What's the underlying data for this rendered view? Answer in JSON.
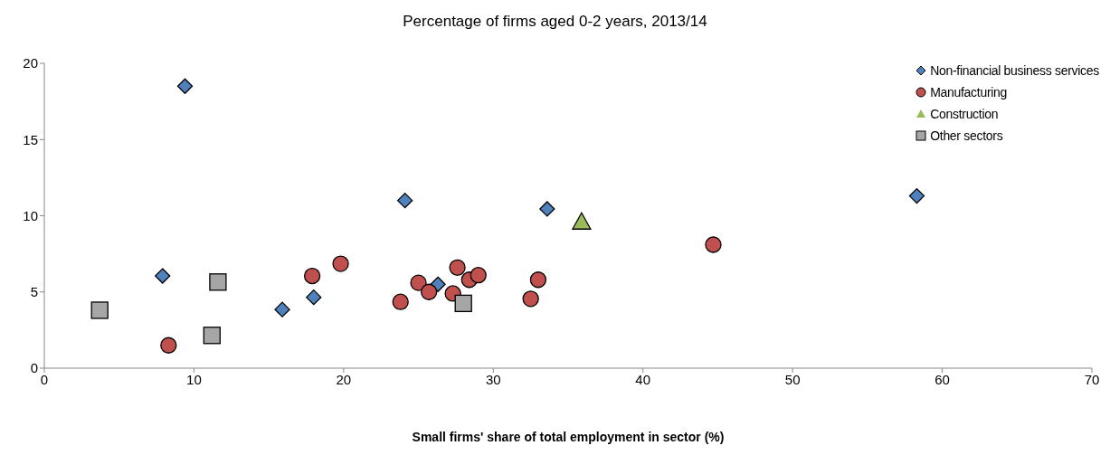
{
  "chart_data": {
    "type": "scatter",
    "title": "Percentage of firms aged 0-2 years, 2013/14",
    "xlabel": "Small firms' share of total employment in sector (%)",
    "xlim": [
      0,
      70
    ],
    "xticks": [
      0,
      10,
      20,
      30,
      40,
      50,
      60,
      70
    ],
    "ylim": [
      0,
      20
    ],
    "yticks": [
      0,
      5,
      10,
      15,
      20
    ],
    "grid": false,
    "legend": "top right",
    "series": [
      {
        "name": "Non-financial business services",
        "color": "#4f81bd",
        "marker": "diamond",
        "x": [
          9.4,
          24.1,
          33.6,
          58.3,
          7.9,
          15.9,
          18.0,
          26.3
        ],
        "values": [
          18.5,
          11.0,
          10.45,
          11.3,
          6.05,
          3.85,
          4.65,
          5.5
        ]
      },
      {
        "name": "Manufacturing",
        "color": "#c0504d",
        "marker": "circle",
        "x": [
          8.3,
          17.9,
          19.8,
          23.8,
          25.0,
          25.7,
          27.3,
          27.6,
          28.4,
          29.0,
          32.5,
          33.0,
          44.7
        ],
        "values": [
          1.5,
          6.05,
          6.85,
          4.35,
          5.6,
          5.0,
          4.9,
          6.6,
          5.8,
          6.1,
          4.55,
          5.8,
          8.1
        ]
      },
      {
        "name": "Construction",
        "color": "#9bbb59",
        "marker": "triangle",
        "x": [
          35.9
        ],
        "values": [
          9.6
        ]
      },
      {
        "name": "Other sectors",
        "color": "#a6a6a6",
        "marker": "square",
        "x": [
          3.7,
          11.6,
          11.2,
          28.0
        ],
        "values": [
          3.8,
          5.65,
          2.15,
          4.25
        ]
      }
    ]
  }
}
